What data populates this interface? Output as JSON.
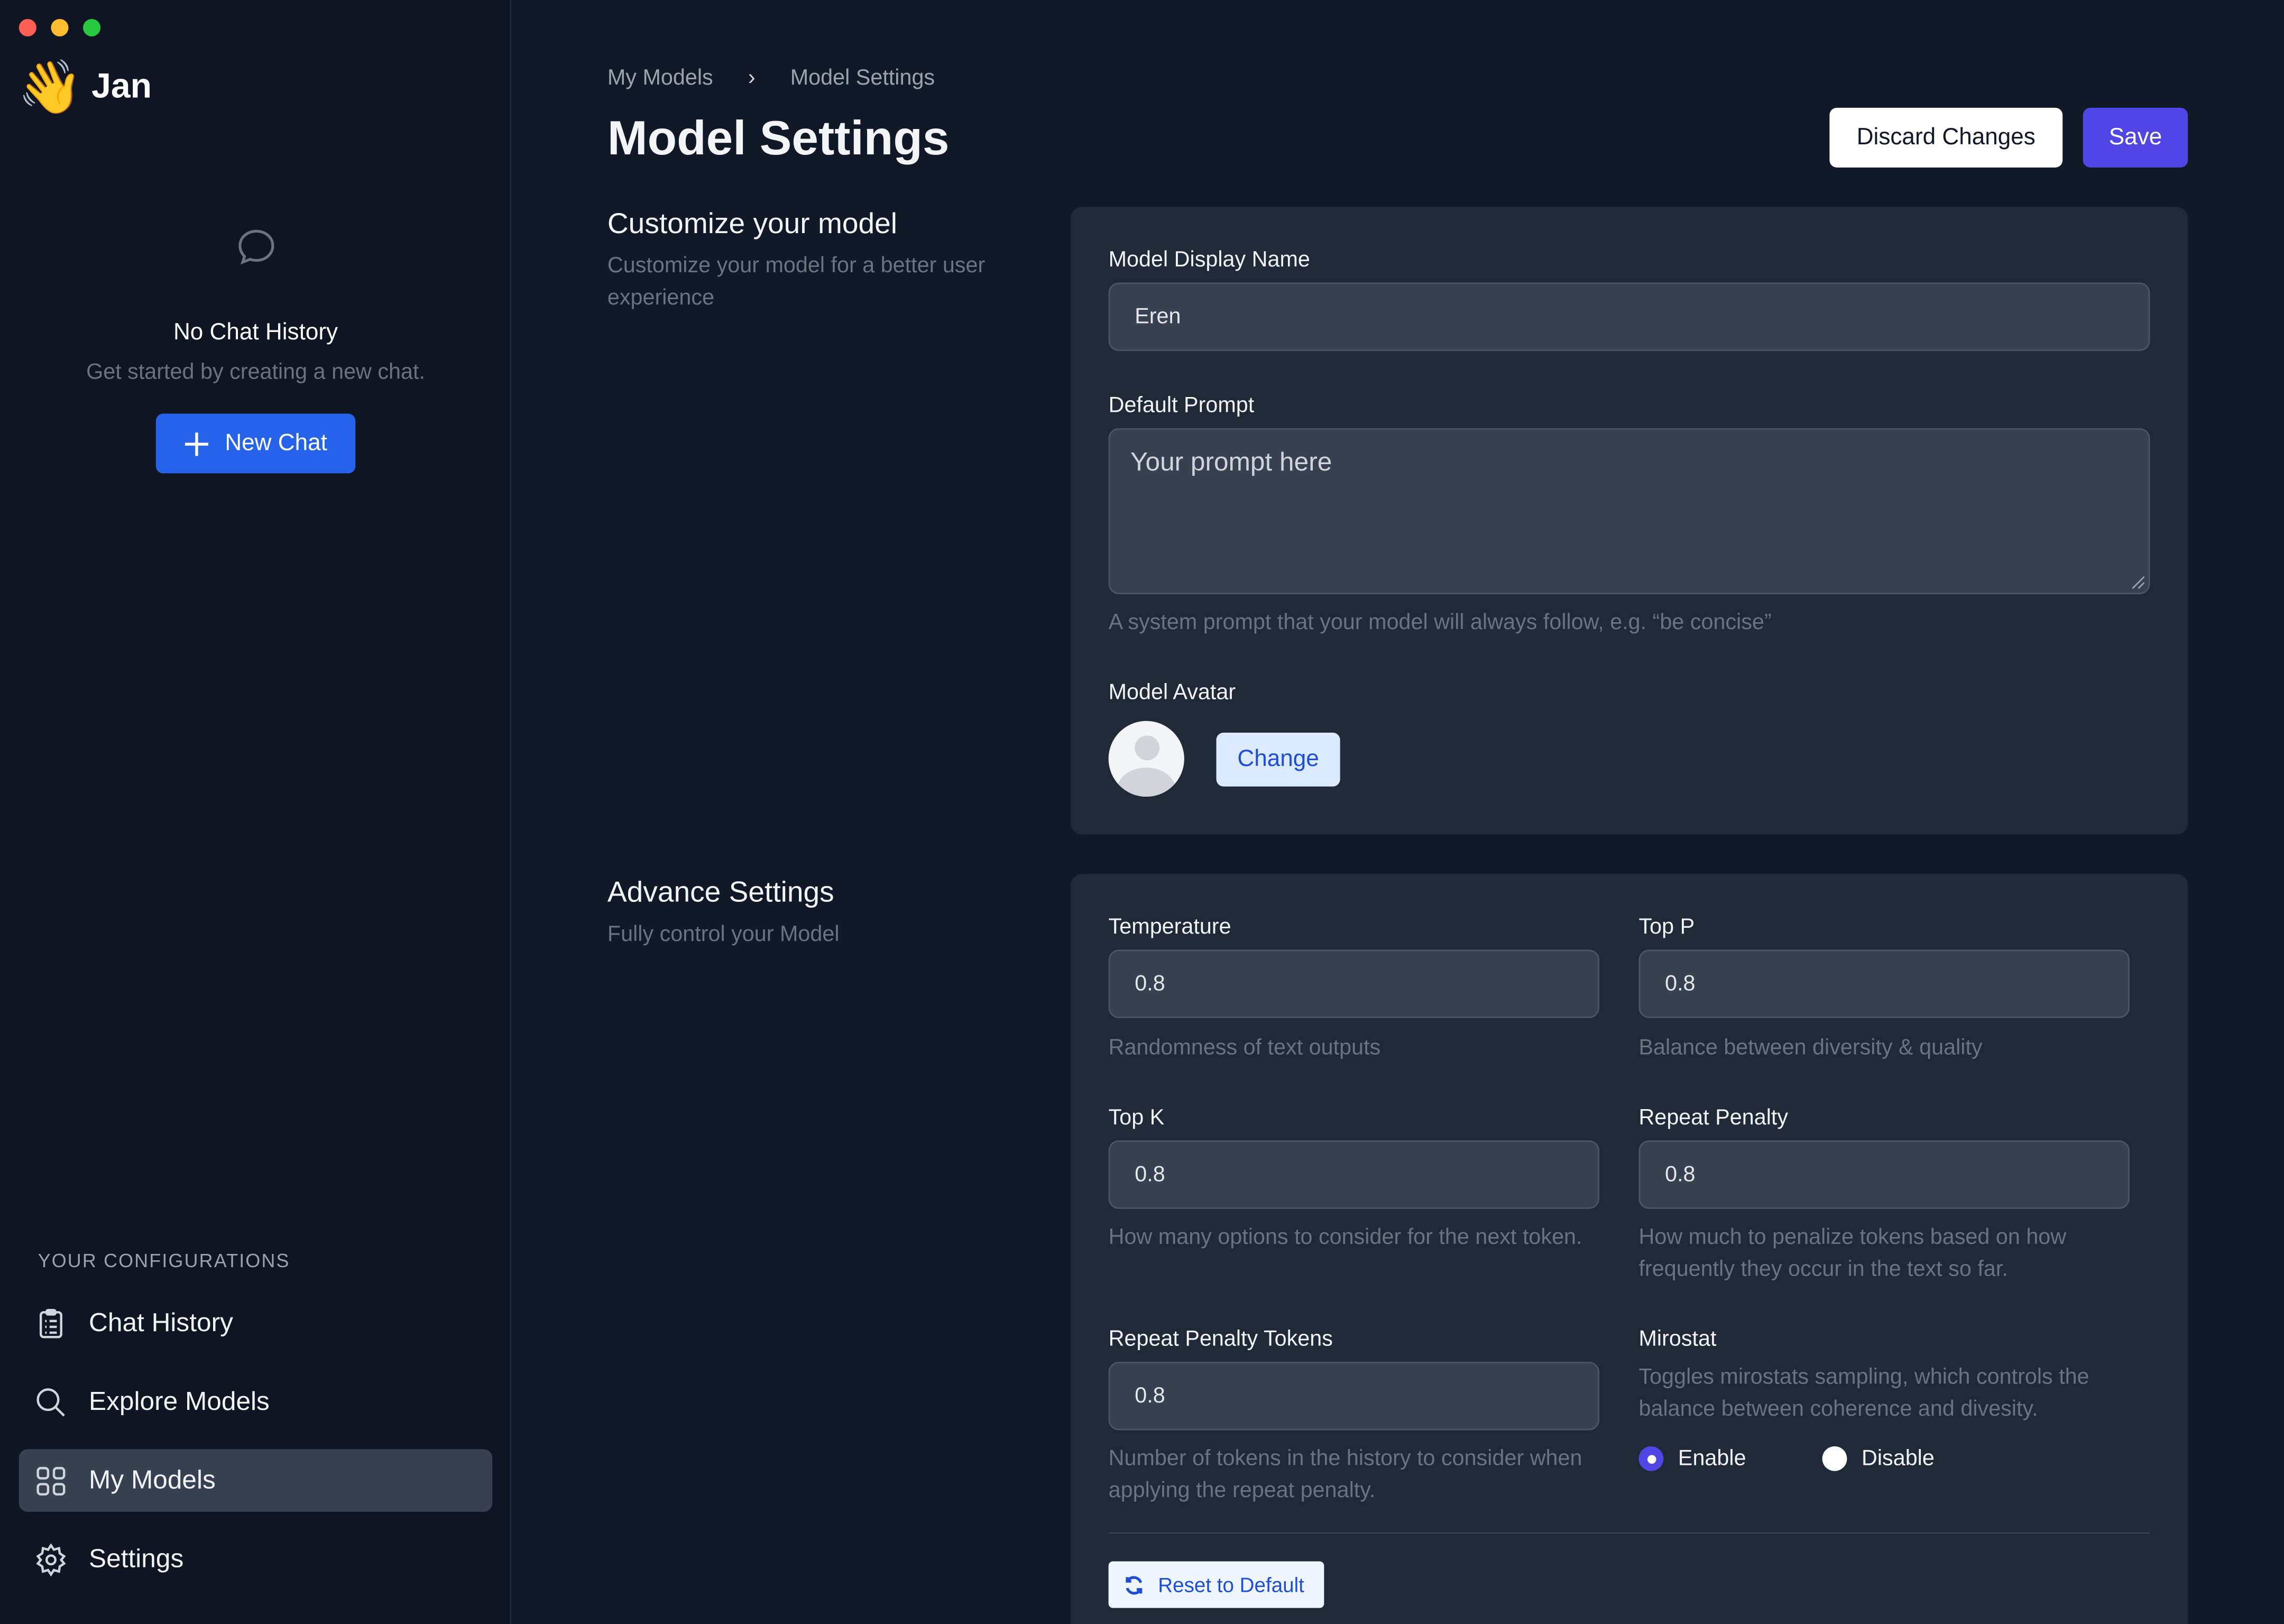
{
  "window": {
    "controls": {
      "close": "#ff5f57",
      "minimize": "#febc2e",
      "maximize": "#28c840"
    }
  },
  "sidebar": {
    "app_name": "Jan",
    "logo_icon": "waving-hand",
    "logo_glyph": "👋",
    "empty": {
      "icon": "chat-bubble-icon",
      "title": "No Chat History",
      "subtitle": "Get started by creating a new chat."
    },
    "new_chat_label": "New Chat",
    "section_label": "YOUR CONFIGURATIONS",
    "items": [
      {
        "label": "Chat History",
        "icon": "clipboard-icon"
      },
      {
        "label": "Explore Models",
        "icon": "search-icon"
      },
      {
        "label": "My Models",
        "icon": "grid-icon",
        "active": true
      },
      {
        "label": "Settings",
        "icon": "gear-icon"
      }
    ]
  },
  "header": {
    "breadcrumb": [
      "My Models",
      "Model Settings"
    ],
    "title": "Model Settings",
    "discard_label": "Discard Changes",
    "save_label": "Save"
  },
  "customize": {
    "title": "Customize your model",
    "subtitle": "Customize your model for a better user experience",
    "display_name_label": "Model Display Name",
    "display_name_value": "Eren",
    "prompt_label": "Default Prompt",
    "prompt_placeholder": "Your prompt here",
    "prompt_help": "A system prompt that your model will always follow, e.g. “be concise”",
    "avatar_label": "Model Avatar",
    "change_label": "Change"
  },
  "advanced": {
    "title": "Advance Settings",
    "subtitle": "Fully control your Model",
    "temperature": {
      "label": "Temperature",
      "value": "0.8",
      "help": "Randomness of text outputs"
    },
    "top_p": {
      "label": "Top P",
      "value": "0.8",
      "help": "Balance between diversity & quality"
    },
    "top_k": {
      "label": "Top K",
      "value": "0.8",
      "help": "How many options to consider for the next token."
    },
    "repeat_penalty": {
      "label": "Repeat Penalty",
      "value": "0.8",
      "help": "How much to penalize tokens based on how frequently they occur in the text so far."
    },
    "repeat_penalty_tokens": {
      "label": "Repeat Penalty Tokens",
      "value": "0.8",
      "help": "Number of tokens in the history to consider when applying the repeat penalty."
    },
    "mirostat": {
      "label": "Mirostat",
      "help": "Toggles mirostats sampling, which controls the balance between coherence and divesity.",
      "enable_label": "Enable",
      "disable_label": "Disable",
      "selected": "Enable"
    },
    "reset_label": "Reset to Default"
  },
  "colors": {
    "accent": "#4f46e5",
    "new_chat": "#2563eb"
  }
}
